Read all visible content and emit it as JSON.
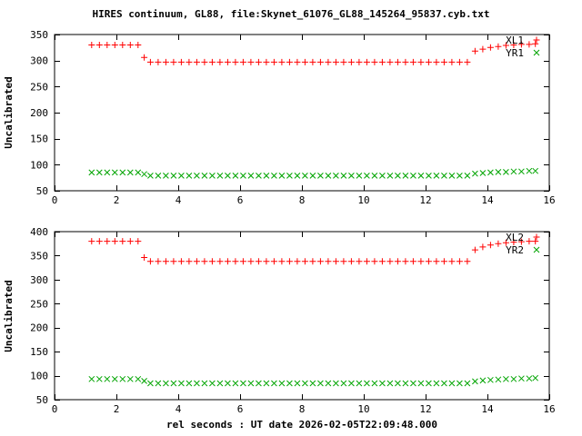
{
  "title": "HIRES continuum, GL88, file:Skynet_61076_GL88_145264_95837.cyb.txt",
  "xlabel": "rel seconds : UT date 2026-02-05T22:09:48.000",
  "colors": {
    "red": "#ff0000",
    "green": "#00a400",
    "axis": "#000000",
    "ylabel": "#006400",
    "background": "#ffffff"
  },
  "chart_data": [
    {
      "type": "scatter",
      "ylabel": "Uncalibrated",
      "xlim": [
        0,
        16
      ],
      "ylim": [
        50,
        350
      ],
      "xticks": [
        0,
        2,
        4,
        6,
        8,
        10,
        12,
        14,
        16
      ],
      "yticks": [
        50,
        100,
        150,
        200,
        250,
        300,
        350
      ],
      "grid": false,
      "legend_position": "top-right",
      "series": [
        {
          "name": "XL1",
          "marker": "plus",
          "color": "#ff0000",
          "points": [
            [
              1.2,
              330
            ],
            [
              1.45,
              330
            ],
            [
              1.7,
              330
            ],
            [
              1.95,
              330
            ],
            [
              2.2,
              330
            ],
            [
              2.45,
              330
            ],
            [
              2.7,
              330
            ],
            [
              2.9,
              306
            ],
            [
              3.1,
              297
            ],
            [
              3.35,
              297
            ],
            [
              3.6,
              297
            ],
            [
              3.85,
              297
            ],
            [
              4.1,
              297
            ],
            [
              4.35,
              297
            ],
            [
              4.6,
              297
            ],
            [
              4.85,
              297
            ],
            [
              5.1,
              297
            ],
            [
              5.35,
              297
            ],
            [
              5.6,
              297
            ],
            [
              5.85,
              297
            ],
            [
              6.1,
              297
            ],
            [
              6.35,
              297
            ],
            [
              6.6,
              297
            ],
            [
              6.85,
              297
            ],
            [
              7.1,
              297
            ],
            [
              7.35,
              297
            ],
            [
              7.6,
              297
            ],
            [
              7.85,
              297
            ],
            [
              8.1,
              297
            ],
            [
              8.35,
              297
            ],
            [
              8.6,
              297
            ],
            [
              8.85,
              297
            ],
            [
              9.1,
              297
            ],
            [
              9.35,
              297
            ],
            [
              9.6,
              297
            ],
            [
              9.85,
              297
            ],
            [
              10.1,
              297
            ],
            [
              10.35,
              297
            ],
            [
              10.6,
              297
            ],
            [
              10.85,
              297
            ],
            [
              11.1,
              297
            ],
            [
              11.35,
              297
            ],
            [
              11.6,
              297
            ],
            [
              11.85,
              297
            ],
            [
              12.1,
              297
            ],
            [
              12.35,
              297
            ],
            [
              12.6,
              297
            ],
            [
              12.85,
              297
            ],
            [
              13.1,
              297
            ],
            [
              13.35,
              297
            ],
            [
              13.6,
              318
            ],
            [
              13.85,
              322
            ],
            [
              14.1,
              325
            ],
            [
              14.35,
              327
            ],
            [
              14.6,
              329
            ],
            [
              14.85,
              330
            ],
            [
              15.1,
              331
            ],
            [
              15.35,
              331
            ],
            [
              15.55,
              332
            ]
          ]
        },
        {
          "name": "YR1",
          "marker": "cross",
          "color": "#00a400",
          "points": [
            [
              1.2,
              85
            ],
            [
              1.45,
              85
            ],
            [
              1.7,
              85
            ],
            [
              1.95,
              85
            ],
            [
              2.2,
              85
            ],
            [
              2.45,
              85
            ],
            [
              2.7,
              85
            ],
            [
              2.9,
              82
            ],
            [
              3.1,
              79
            ],
            [
              3.35,
              79
            ],
            [
              3.6,
              79
            ],
            [
              3.85,
              79
            ],
            [
              4.1,
              79
            ],
            [
              4.35,
              79
            ],
            [
              4.6,
              79
            ],
            [
              4.85,
              79
            ],
            [
              5.1,
              79
            ],
            [
              5.35,
              79
            ],
            [
              5.6,
              79
            ],
            [
              5.85,
              79
            ],
            [
              6.1,
              79
            ],
            [
              6.35,
              79
            ],
            [
              6.6,
              79
            ],
            [
              6.85,
              79
            ],
            [
              7.1,
              79
            ],
            [
              7.35,
              79
            ],
            [
              7.6,
              79
            ],
            [
              7.85,
              79
            ],
            [
              8.1,
              79
            ],
            [
              8.35,
              79
            ],
            [
              8.6,
              79
            ],
            [
              8.85,
              79
            ],
            [
              9.1,
              79
            ],
            [
              9.35,
              79
            ],
            [
              9.6,
              79
            ],
            [
              9.85,
              79
            ],
            [
              10.1,
              79
            ],
            [
              10.35,
              79
            ],
            [
              10.6,
              79
            ],
            [
              10.85,
              79
            ],
            [
              11.1,
              79
            ],
            [
              11.35,
              79
            ],
            [
              11.6,
              79
            ],
            [
              11.85,
              79
            ],
            [
              12.1,
              79
            ],
            [
              12.35,
              79
            ],
            [
              12.6,
              79
            ],
            [
              12.85,
              79
            ],
            [
              13.1,
              79
            ],
            [
              13.35,
              79
            ],
            [
              13.6,
              83
            ],
            [
              13.85,
              84
            ],
            [
              14.1,
              85
            ],
            [
              14.35,
              86
            ],
            [
              14.6,
              86
            ],
            [
              14.85,
              87
            ],
            [
              15.1,
              87
            ],
            [
              15.35,
              88
            ],
            [
              15.55,
              88
            ]
          ]
        }
      ]
    },
    {
      "type": "scatter",
      "ylabel": "Uncalibrated",
      "xlim": [
        0,
        16
      ],
      "ylim": [
        50,
        400
      ],
      "xticks": [
        0,
        2,
        4,
        6,
        8,
        10,
        12,
        14,
        16
      ],
      "yticks": [
        50,
        100,
        150,
        200,
        250,
        300,
        350,
        400
      ],
      "grid": false,
      "legend_position": "top-right",
      "series": [
        {
          "name": "XL2",
          "marker": "plus",
          "color": "#ff0000",
          "points": [
            [
              1.2,
              380
            ],
            [
              1.45,
              380
            ],
            [
              1.7,
              380
            ],
            [
              1.95,
              380
            ],
            [
              2.2,
              380
            ],
            [
              2.45,
              380
            ],
            [
              2.7,
              380
            ],
            [
              2.9,
              346
            ],
            [
              3.1,
              338
            ],
            [
              3.35,
              338
            ],
            [
              3.6,
              338
            ],
            [
              3.85,
              338
            ],
            [
              4.1,
              338
            ],
            [
              4.35,
              338
            ],
            [
              4.6,
              338
            ],
            [
              4.85,
              338
            ],
            [
              5.1,
              338
            ],
            [
              5.35,
              338
            ],
            [
              5.6,
              338
            ],
            [
              5.85,
              338
            ],
            [
              6.1,
              338
            ],
            [
              6.35,
              338
            ],
            [
              6.6,
              338
            ],
            [
              6.85,
              338
            ],
            [
              7.1,
              338
            ],
            [
              7.35,
              338
            ],
            [
              7.6,
              338
            ],
            [
              7.85,
              338
            ],
            [
              8.1,
              338
            ],
            [
              8.35,
              338
            ],
            [
              8.6,
              338
            ],
            [
              8.85,
              338
            ],
            [
              9.1,
              338
            ],
            [
              9.35,
              338
            ],
            [
              9.6,
              338
            ],
            [
              9.85,
              338
            ],
            [
              10.1,
              338
            ],
            [
              10.35,
              338
            ],
            [
              10.6,
              338
            ],
            [
              10.85,
              338
            ],
            [
              11.1,
              338
            ],
            [
              11.35,
              338
            ],
            [
              11.6,
              338
            ],
            [
              11.85,
              338
            ],
            [
              12.1,
              338
            ],
            [
              12.35,
              338
            ],
            [
              12.6,
              338
            ],
            [
              12.85,
              338
            ],
            [
              13.1,
              338
            ],
            [
              13.35,
              338
            ],
            [
              13.6,
              362
            ],
            [
              13.85,
              368
            ],
            [
              14.1,
              372
            ],
            [
              14.35,
              375
            ],
            [
              14.6,
              377
            ],
            [
              14.85,
              378
            ],
            [
              15.1,
              379
            ],
            [
              15.35,
              380
            ],
            [
              15.55,
              380
            ]
          ]
        },
        {
          "name": "YR2",
          "marker": "cross",
          "color": "#00a400",
          "points": [
            [
              1.2,
              93
            ],
            [
              1.45,
              93
            ],
            [
              1.7,
              93
            ],
            [
              1.95,
              93
            ],
            [
              2.2,
              93
            ],
            [
              2.45,
              93
            ],
            [
              2.7,
              93
            ],
            [
              2.9,
              89
            ],
            [
              3.1,
              84
            ],
            [
              3.35,
              84
            ],
            [
              3.6,
              84
            ],
            [
              3.85,
              84
            ],
            [
              4.1,
              84
            ],
            [
              4.35,
              84
            ],
            [
              4.6,
              84
            ],
            [
              4.85,
              84
            ],
            [
              5.1,
              84
            ],
            [
              5.35,
              84
            ],
            [
              5.6,
              84
            ],
            [
              5.85,
              84
            ],
            [
              6.1,
              84
            ],
            [
              6.35,
              84
            ],
            [
              6.6,
              84
            ],
            [
              6.85,
              84
            ],
            [
              7.1,
              84
            ],
            [
              7.35,
              84
            ],
            [
              7.6,
              84
            ],
            [
              7.85,
              84
            ],
            [
              8.1,
              84
            ],
            [
              8.35,
              84
            ],
            [
              8.6,
              84
            ],
            [
              8.85,
              84
            ],
            [
              9.1,
              84
            ],
            [
              9.35,
              84
            ],
            [
              9.6,
              84
            ],
            [
              9.85,
              84
            ],
            [
              10.1,
              84
            ],
            [
              10.35,
              84
            ],
            [
              10.6,
              84
            ],
            [
              10.85,
              84
            ],
            [
              11.1,
              84
            ],
            [
              11.35,
              84
            ],
            [
              11.6,
              84
            ],
            [
              11.85,
              84
            ],
            [
              12.1,
              84
            ],
            [
              12.35,
              84
            ],
            [
              12.6,
              84
            ],
            [
              12.85,
              84
            ],
            [
              13.1,
              84
            ],
            [
              13.35,
              84
            ],
            [
              13.6,
              88
            ],
            [
              13.85,
              90
            ],
            [
              14.1,
              91
            ],
            [
              14.35,
              92
            ],
            [
              14.6,
              93
            ],
            [
              14.85,
              93
            ],
            [
              15.1,
              94
            ],
            [
              15.35,
              94
            ],
            [
              15.55,
              95
            ]
          ]
        }
      ]
    }
  ]
}
